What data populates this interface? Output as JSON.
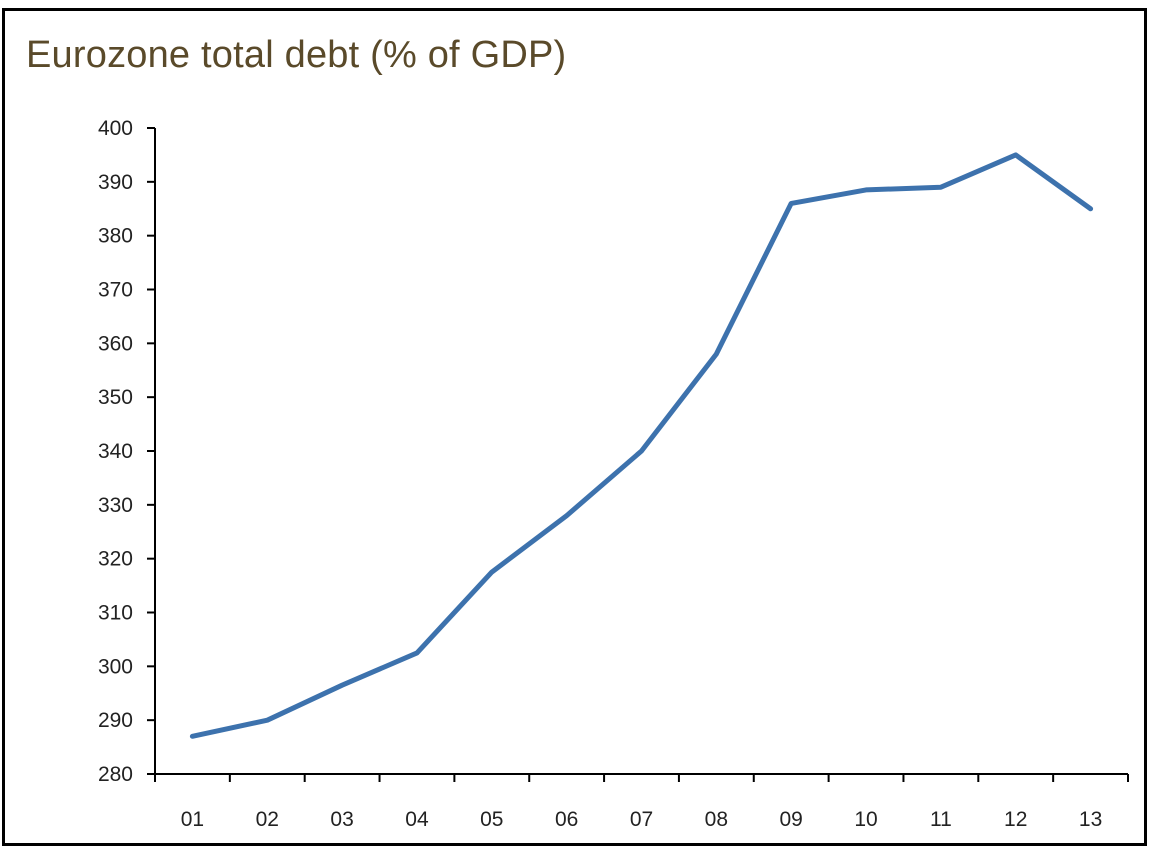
{
  "chart_data": {
    "type": "line",
    "title": "Eurozone total debt (% of GDP)",
    "xlabel": "",
    "ylabel": "",
    "categories": [
      "01",
      "02",
      "03",
      "04",
      "05",
      "06",
      "07",
      "08",
      "09",
      "10",
      "11",
      "12",
      "13"
    ],
    "series": [
      {
        "values": [
          287,
          290,
          296.5,
          302.5,
          317.5,
          328,
          340,
          358,
          386,
          388.5,
          389,
          395,
          385
        ]
      }
    ],
    "ylim": [
      280,
      400
    ],
    "yticks": [
      "280",
      "290",
      "300",
      "310",
      "320",
      "330",
      "340",
      "350",
      "360",
      "370",
      "380",
      "390",
      "400"
    ],
    "grid": false,
    "line_color": "#3d72ad"
  }
}
